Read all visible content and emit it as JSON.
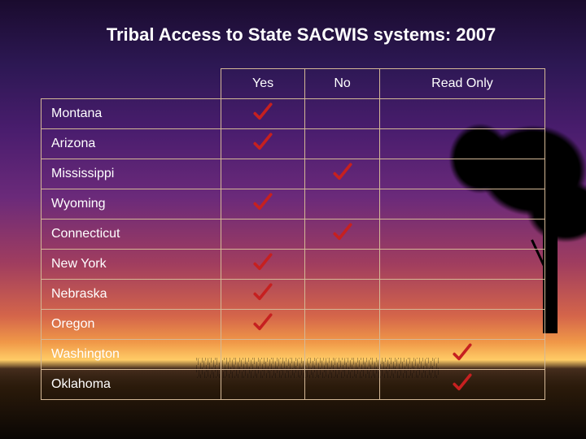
{
  "title": "Tribal Access to State SACWIS systems: 2007",
  "columns": [
    "Yes",
    "No",
    "Read Only"
  ],
  "rows": [
    {
      "state": "Montana",
      "yes": true,
      "no": false,
      "readonly": false
    },
    {
      "state": "Arizona",
      "yes": true,
      "no": false,
      "readonly": false
    },
    {
      "state": "Mississippi",
      "yes": false,
      "no": true,
      "readonly": false
    },
    {
      "state": "Wyoming",
      "yes": true,
      "no": false,
      "readonly": false
    },
    {
      "state": "Connecticut",
      "yes": false,
      "no": true,
      "readonly": false
    },
    {
      "state": "New York",
      "yes": true,
      "no": false,
      "readonly": false
    },
    {
      "state": "Nebraska",
      "yes": true,
      "no": false,
      "readonly": false
    },
    {
      "state": "Oregon",
      "yes": true,
      "no": false,
      "readonly": false
    },
    {
      "state": "Washington",
      "yes": false,
      "no": false,
      "readonly": true
    },
    {
      "state": "Oklahoma",
      "yes": false,
      "no": false,
      "readonly": true
    }
  ],
  "check_color": "#c62020",
  "border_color": "#d4b896",
  "text_color": "#ffffff"
}
